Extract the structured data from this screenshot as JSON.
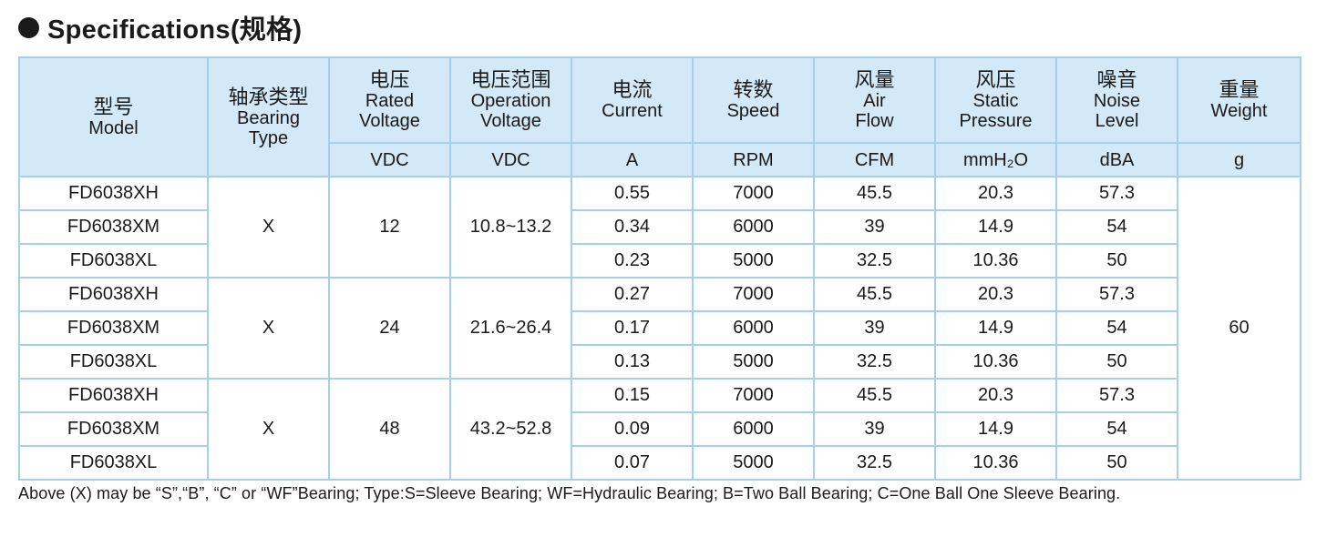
{
  "title": "Specifications(规格)",
  "headers": {
    "model": {
      "zh": "型号",
      "en": "Model"
    },
    "bearing": {
      "zh": "轴承类型",
      "en1": "Bearing",
      "en2": "Type"
    },
    "rated_voltage": {
      "zh": "电压",
      "en1": "Rated",
      "en2": "Voltage",
      "unit": "VDC"
    },
    "operation_voltage": {
      "zh": "电压范围",
      "en1": "Operation",
      "en2": "Voltage",
      "unit": "VDC"
    },
    "current": {
      "zh": "电流",
      "en": "Current",
      "unit": "A"
    },
    "speed": {
      "zh": "转数",
      "en": "Speed",
      "unit": "RPM"
    },
    "air_flow": {
      "zh": "风量",
      "en1": "Air",
      "en2": "Flow",
      "unit": "CFM"
    },
    "static_pressure": {
      "zh": "风压",
      "en1": "Static",
      "en2": "Pressure",
      "unit": "mmH₂O"
    },
    "noise": {
      "zh": "噪音",
      "en1": "Noise",
      "en2": "Level",
      "unit": "dBA"
    },
    "weight": {
      "zh": "重量",
      "en": "Weight",
      "unit": "g"
    }
  },
  "groups": [
    {
      "bearing": "X",
      "rated_voltage": "12",
      "operation_voltage": "10.8~13.2",
      "rows": [
        {
          "model": "FD6038XH",
          "current": "0.55",
          "speed": "7000",
          "air_flow": "45.5",
          "static_pressure": "20.3",
          "noise": "57.3"
        },
        {
          "model": "FD6038XM",
          "current": "0.34",
          "speed": "6000",
          "air_flow": "39",
          "static_pressure": "14.9",
          "noise": "54"
        },
        {
          "model": "FD6038XL",
          "current": "0.23",
          "speed": "5000",
          "air_flow": "32.5",
          "static_pressure": "10.36",
          "noise": "50"
        }
      ]
    },
    {
      "bearing": "X",
      "rated_voltage": "24",
      "operation_voltage": "21.6~26.4",
      "rows": [
        {
          "model": "FD6038XH",
          "current": "0.27",
          "speed": "7000",
          "air_flow": "45.5",
          "static_pressure": "20.3",
          "noise": "57.3"
        },
        {
          "model": "FD6038XM",
          "current": "0.17",
          "speed": "6000",
          "air_flow": "39",
          "static_pressure": "14.9",
          "noise": "54"
        },
        {
          "model": "FD6038XL",
          "current": "0.13",
          "speed": "5000",
          "air_flow": "32.5",
          "static_pressure": "10.36",
          "noise": "50"
        }
      ]
    },
    {
      "bearing": "X",
      "rated_voltage": "48",
      "operation_voltage": "43.2~52.8",
      "rows": [
        {
          "model": "FD6038XH",
          "current": "0.15",
          "speed": "7000",
          "air_flow": "45.5",
          "static_pressure": "20.3",
          "noise": "57.3"
        },
        {
          "model": "FD6038XM",
          "current": "0.09",
          "speed": "6000",
          "air_flow": "39",
          "static_pressure": "14.9",
          "noise": "54"
        },
        {
          "model": "FD6038XL",
          "current": "0.07",
          "speed": "5000",
          "air_flow": "32.5",
          "static_pressure": "10.36",
          "noise": "50"
        }
      ]
    }
  ],
  "weight_value": "60",
  "footnote": "Above (X) may be “S”,“B”, “C” or “WF”Bearing;  Type:S=Sleeve  Bearing;   WF=Hydraulic Bearing;   B=Two Ball Bearing;   C=One Ball  One Sleeve  Bearing."
}
